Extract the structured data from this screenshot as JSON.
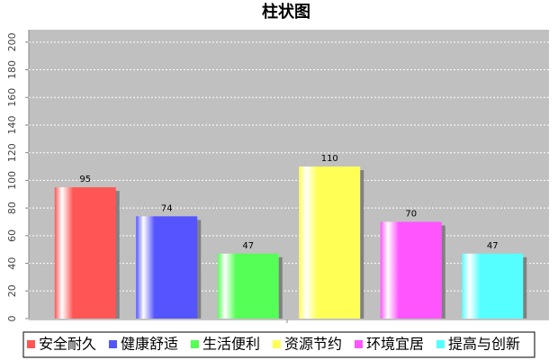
{
  "chart_data": {
    "type": "bar",
    "title": "柱状图",
    "categories": [
      null
    ],
    "series": [
      {
        "name": "安全耐久",
        "color": "#ff5555",
        "values": [
          95
        ]
      },
      {
        "name": "健康舒适",
        "color": "#5555ff",
        "values": [
          74
        ]
      },
      {
        "name": "生活便利",
        "color": "#55ff55",
        "values": [
          47
        ]
      },
      {
        "name": "资源节约",
        "color": "#ffff55",
        "values": [
          110
        ]
      },
      {
        "name": "环境宜居",
        "color": "#ff55ff",
        "values": [
          70
        ]
      },
      {
        "name": "提高与创新",
        "color": "#55ffff",
        "values": [
          47
        ]
      }
    ],
    "ylim": [
      0,
      209
    ],
    "yticks": [
      0,
      20,
      40,
      60,
      80,
      100,
      120,
      140,
      160,
      180,
      200
    ],
    "grid": true,
    "legend": "bottom"
  }
}
